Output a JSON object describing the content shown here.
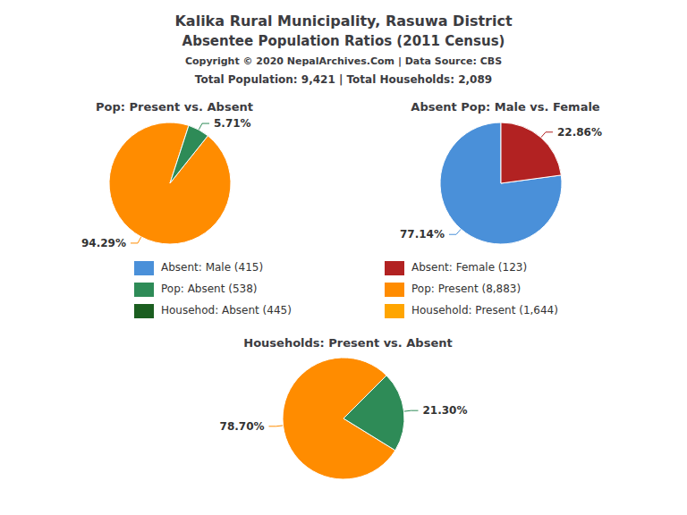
{
  "chart_data": [
    {
      "type": "pie",
      "title": "Pop: Present vs. Absent",
      "values": [
        94.29,
        5.71
      ],
      "value_labels": [
        "94.29%",
        "5.71%"
      ],
      "colors": [
        "#FF8C00",
        "#2E8B57"
      ],
      "data_labels": true
    },
    {
      "type": "pie",
      "title": "Absent Pop: Male vs. Female",
      "values": [
        77.14,
        22.86
      ],
      "value_labels": [
        "77.14%",
        "22.86%"
      ],
      "colors": [
        "#4A90D9",
        "#B22222"
      ],
      "data_labels": true
    },
    {
      "type": "pie",
      "title": "Households: Present vs. Absent",
      "values": [
        78.7,
        21.3
      ],
      "value_labels": [
        "78.70%",
        "21.30%"
      ],
      "colors": [
        "#FF8C00",
        "#2E8B57"
      ],
      "data_labels": true
    }
  ],
  "title": "Kalika Rural Municipality, Rasuwa District",
  "subtitle": "Absentee Population Ratios (2011 Census)",
  "annotations": [
    "Copyright © 2020 NepalArchives.Com | Data Source: CBS",
    "Total Population: 9,421 | Total Households: 2,089"
  ],
  "legend_items": [
    {
      "label": "Absent: Male (415)",
      "color": "#4A90D9"
    },
    {
      "label": "Absent: Female (123)",
      "color": "#B22222"
    },
    {
      "label": "Pop: Absent (538)",
      "color": "#2E8B57"
    },
    {
      "label": "Pop: Present (8,883)",
      "color": "#FF8C00"
    },
    {
      "label": "Househod: Absent (445)",
      "color": "#1B5E20"
    },
    {
      "label": "Household: Present (1,644)",
      "color": "#FFA500"
    }
  ]
}
